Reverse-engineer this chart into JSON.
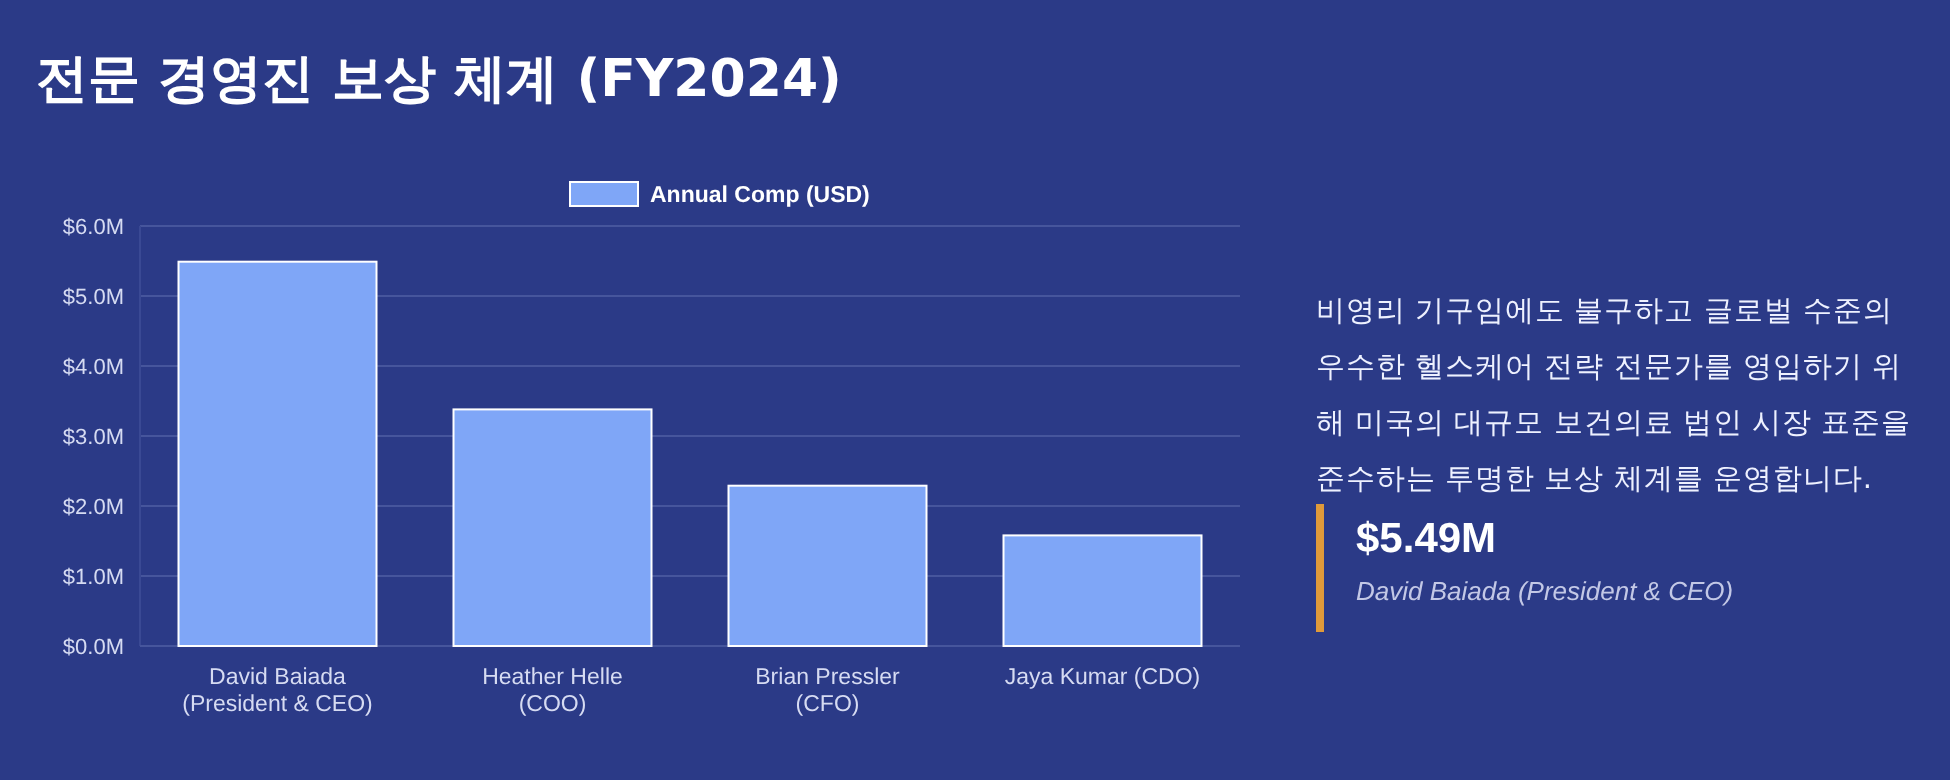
{
  "chart_data": {
    "type": "bar",
    "title": "전문 경영진 보상 체계 (FY2024)",
    "categories": [
      "David Baiada (President & CEO)",
      "Heather Helle (COO)",
      "Brian Pressler (CFO)",
      "Jaya Kumar (CDO)"
    ],
    "series": [
      {
        "name": "Annual Comp (USD)",
        "color": "#7fa6f7",
        "values": [
          5.49,
          3.38,
          2.29,
          1.58
        ]
      }
    ],
    "ylim": [
      0,
      6
    ],
    "yticks": [
      {
        "value": 0,
        "label": "$0.0M"
      },
      {
        "value": 1,
        "label": "$1.0M"
      },
      {
        "value": 2,
        "label": "$2.0M"
      },
      {
        "value": 3,
        "label": "$3.0M"
      },
      {
        "value": 4,
        "label": "$4.0M"
      },
      {
        "value": 5,
        "label": "$5.0M"
      },
      {
        "value": 6,
        "label": "$6.0M"
      }
    ],
    "grid": "y",
    "legend": "top",
    "annotations": [
      "비영리 기구임에도 불구하고 글로벌 수준의 우수한 헬스케어 전략 전문가를 영입하기 위해 미국의 대규모 보건의료 법인 시장 표준을 준수하는 투명한 보상 체계를 운영합니다.",
      "$5.49M",
      "David Baiada (President & CEO)"
    ]
  }
}
